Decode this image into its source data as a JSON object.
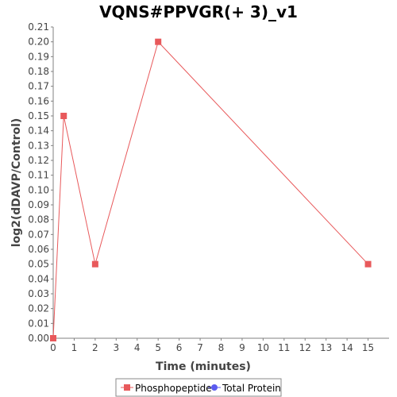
{
  "chart_data": {
    "type": "line",
    "title": "VQNS#PPVGR(+ 3)_v1",
    "xlabel": "Time (minutes)",
    "ylabel": "log2(dDAVP/Control)",
    "xlim": [
      0,
      16
    ],
    "ylim": [
      0,
      0.21
    ],
    "x_ticks": [
      0,
      1,
      2,
      3,
      4,
      5,
      6,
      7,
      8,
      9,
      10,
      11,
      12,
      13,
      14,
      15
    ],
    "y_ticks": [
      "0.00",
      "0.01",
      "0.02",
      "0.03",
      "0.04",
      "0.05",
      "0.06",
      "0.07",
      "0.08",
      "0.09",
      "0.10",
      "0.11",
      "0.12",
      "0.13",
      "0.14",
      "0.15",
      "0.16",
      "0.17",
      "0.18",
      "0.19",
      "0.20",
      "0.21"
    ],
    "grid": false,
    "legend_position": "bottom",
    "series": [
      {
        "name": "Phosphopeptide",
        "color": "#e8595b",
        "marker": "square",
        "points": [
          {
            "x": 0,
            "y": 0.0
          },
          {
            "x": 0.5,
            "y": 0.15
          },
          {
            "x": 2,
            "y": 0.05
          },
          {
            "x": 5,
            "y": 0.2
          },
          {
            "x": 15,
            "y": 0.05
          }
        ]
      },
      {
        "name": "Total Protein",
        "color": "#5b5bf0",
        "marker": "circle",
        "points": []
      }
    ]
  }
}
